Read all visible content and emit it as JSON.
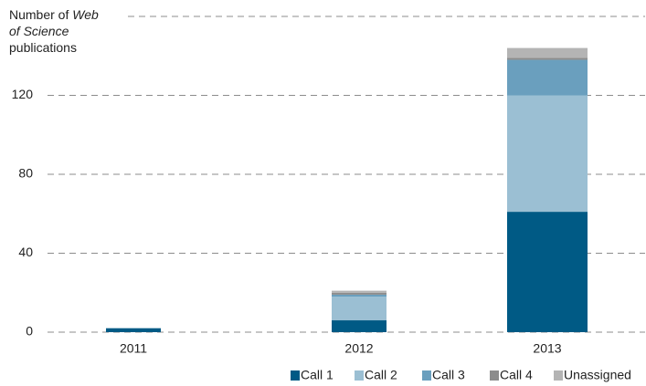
{
  "chart_data": {
    "type": "bar",
    "stacked": true,
    "y_label_lines": [
      [
        {
          "text": "Number of ",
          "italic": false
        },
        {
          "text": "Web",
          "italic": true
        }
      ],
      [
        {
          "text": "of Science",
          "italic": true
        }
      ],
      [
        {
          "text": "publications",
          "italic": false
        }
      ]
    ],
    "categories": [
      "2011",
      "2012",
      "2013"
    ],
    "series": [
      {
        "name": "Call 1",
        "color": "#005a85",
        "values": [
          2,
          6,
          61
        ]
      },
      {
        "name": "Call 2",
        "color": "#9bbfd3",
        "values": [
          0,
          12,
          59
        ]
      },
      {
        "name": "Call 3",
        "color": "#6a9fbe",
        "values": [
          0,
          1,
          18
        ]
      },
      {
        "name": "Call 4",
        "color": "#8c8c8c",
        "values": [
          0,
          1,
          1
        ]
      },
      {
        "name": "Unassigned",
        "color": "#b4b4b4",
        "values": [
          0,
          1,
          5
        ]
      }
    ],
    "ylim": [
      0,
      160
    ],
    "yticks": [
      0,
      40,
      80,
      120
    ],
    "grid": true,
    "legend": "bottom"
  }
}
